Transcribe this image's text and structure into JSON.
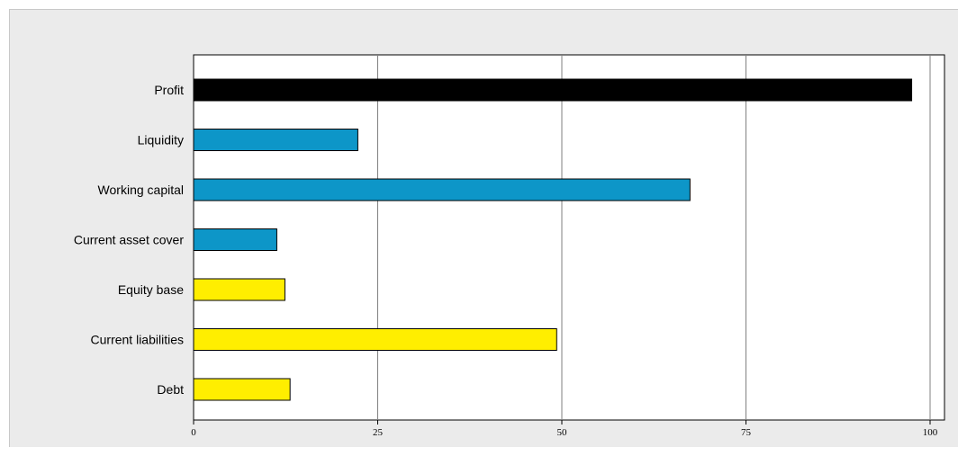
{
  "chart_data": {
    "type": "bar",
    "orientation": "horizontal",
    "categories": [
      "Profit",
      "Liquidity",
      "Working capital",
      "Current asset cover",
      "Equity base",
      "Current liabilities",
      "Debt"
    ],
    "values": [
      97.5,
      22.3,
      67.4,
      11.3,
      12.4,
      49.3,
      13.1
    ],
    "colors": [
      "#000000",
      "#0d96c8",
      "#0d96c8",
      "#0d96c8",
      "#ffee00",
      "#ffee00",
      "#ffee00"
    ],
    "title": "",
    "xlabel": "",
    "ylabel": "",
    "xlim": [
      0,
      100
    ],
    "xticks": [
      0,
      25,
      50,
      75,
      100
    ],
    "xtick_labels": [
      "0",
      "25",
      "50",
      "75",
      "100"
    ],
    "grid": "vertical",
    "legend": "none"
  }
}
